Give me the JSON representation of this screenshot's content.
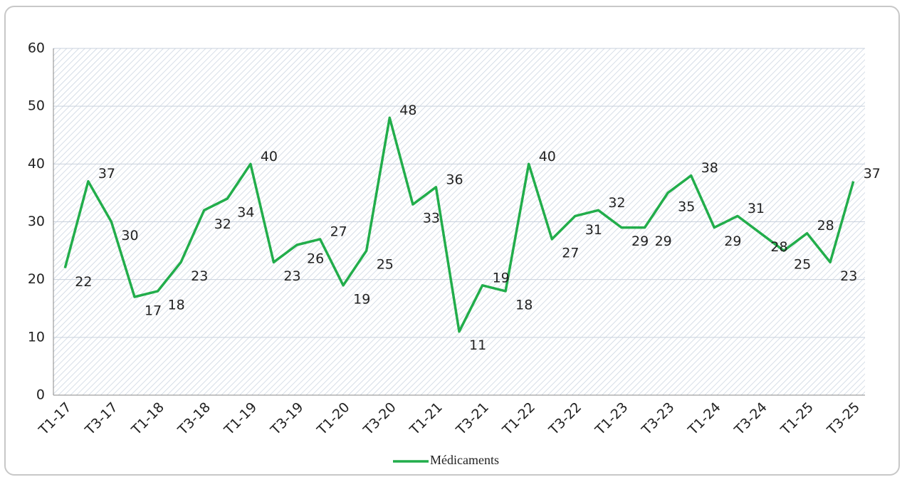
{
  "chart_data": {
    "type": "line",
    "categories": [
      "T1-17",
      null,
      "T3-17",
      null,
      "T1-18",
      null,
      "T3-18",
      null,
      "T1-19",
      null,
      "T3-19",
      null,
      "T1-20",
      null,
      "T3-20",
      null,
      "T1-21",
      null,
      "T3-21",
      null,
      "T1-22",
      null,
      "T3-22",
      null,
      "T1-23",
      null,
      "T3-23",
      null,
      "T1-24",
      null,
      "T3-24",
      null,
      "T1-25",
      null,
      "T3-25"
    ],
    "series": [
      {
        "name": "Médicaments",
        "color": "#22ad4b",
        "values": [
          22,
          37,
          30,
          17,
          18,
          23,
          32,
          34,
          40,
          23,
          26,
          27,
          19,
          25,
          48,
          33,
          36,
          11,
          19,
          18,
          40,
          27,
          31,
          32,
          29,
          29,
          35,
          38,
          29,
          31,
          28,
          25,
          28,
          23,
          37
        ]
      }
    ],
    "ylim": [
      0,
      60
    ],
    "yticks": [
      0,
      10,
      20,
      30,
      40,
      50,
      60
    ],
    "grid": true,
    "legend": "bottom"
  }
}
